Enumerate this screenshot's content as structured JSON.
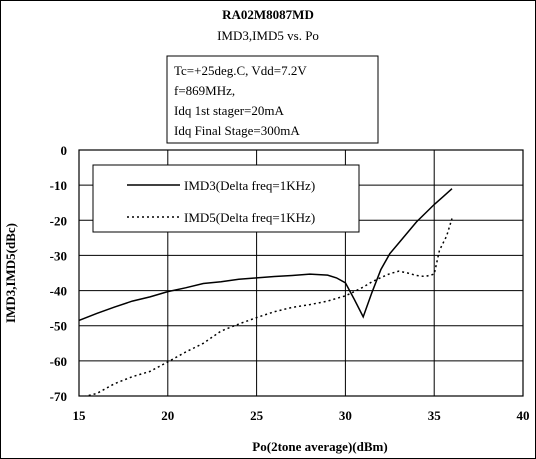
{
  "chart_data": {
    "type": "line",
    "title": "RA02M8087MD",
    "subtitle": "IMD3,IMD5 vs. Po",
    "conditions": [
      "Tc=+25deg.C, Vdd=7.2V",
      "f=869MHz,",
      "Idq 1st stager=20mA",
      "Idq Final Stage=300mA"
    ],
    "xlabel": "Po(2tone average)(dBm)",
    "ylabel": "IMD3,IMD5(dBc)",
    "xlim": [
      15,
      40
    ],
    "ylim": [
      -70,
      0
    ],
    "x_ticks": [
      "15",
      "20",
      "25",
      "30",
      "35",
      "40"
    ],
    "y_ticks": [
      "0",
      "-10",
      "-20",
      "-30",
      "-40",
      "-50",
      "-60",
      "-70"
    ],
    "grid": true,
    "legend_position": "upper-left",
    "series": [
      {
        "name": "IMD3(Delta freq=1KHz)",
        "style": "solid",
        "color": "#000000",
        "points": [
          [
            15,
            -48.5
          ],
          [
            16,
            -46.5
          ],
          [
            17,
            -44.7
          ],
          [
            18,
            -43.0
          ],
          [
            19,
            -41.8
          ],
          [
            20,
            -40.3
          ],
          [
            21,
            -39.2
          ],
          [
            22,
            -38.0
          ],
          [
            23,
            -37.5
          ],
          [
            24,
            -36.8
          ],
          [
            25,
            -36.4
          ],
          [
            26,
            -36.0
          ],
          [
            27,
            -35.7
          ],
          [
            28,
            -35.3
          ],
          [
            29,
            -35.6
          ],
          [
            29.5,
            -36.4
          ],
          [
            30,
            -37.8
          ],
          [
            30.5,
            -42.5
          ],
          [
            31,
            -47.5
          ],
          [
            31.5,
            -40.5
          ],
          [
            32,
            -34.0
          ],
          [
            32.5,
            -29.5
          ],
          [
            33,
            -26.5
          ],
          [
            34,
            -20.5
          ],
          [
            35,
            -15.5
          ],
          [
            35.5,
            -13.3
          ],
          [
            36,
            -11.0
          ]
        ]
      },
      {
        "name": "IMD5(Delta freq=1KHz)",
        "style": "dotted",
        "color": "#000000",
        "points": [
          [
            15,
            -70.5
          ],
          [
            16,
            -69.3
          ],
          [
            17,
            -66.5
          ],
          [
            18,
            -64.5
          ],
          [
            19,
            -63.0
          ],
          [
            20,
            -60.3
          ],
          [
            21,
            -57.5
          ],
          [
            22,
            -55.0
          ],
          [
            23,
            -51.5
          ],
          [
            24,
            -49.5
          ],
          [
            25,
            -47.7
          ],
          [
            26,
            -46.0
          ],
          [
            27,
            -44.8
          ],
          [
            28,
            -44.0
          ],
          [
            29,
            -43.0
          ],
          [
            30,
            -41.5
          ],
          [
            30.5,
            -40.3
          ],
          [
            31,
            -39.0
          ],
          [
            31.5,
            -37.5
          ],
          [
            32,
            -36.3
          ],
          [
            32.5,
            -35.2
          ],
          [
            33,
            -34.5
          ],
          [
            33.5,
            -35.0
          ],
          [
            34,
            -35.7
          ],
          [
            34.5,
            -36.0
          ],
          [
            35,
            -35.3
          ],
          [
            35.3,
            -28.5
          ],
          [
            35.7,
            -24.5
          ],
          [
            36,
            -19.5
          ]
        ]
      }
    ]
  }
}
